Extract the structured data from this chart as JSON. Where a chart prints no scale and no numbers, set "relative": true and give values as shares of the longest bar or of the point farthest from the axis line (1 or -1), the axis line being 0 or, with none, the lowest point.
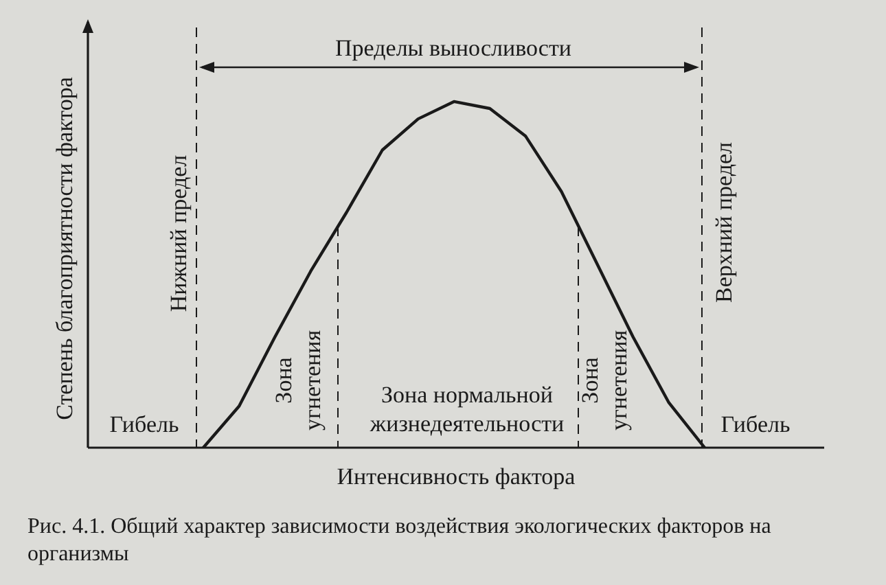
{
  "chart_data": {
    "type": "line",
    "relative": true,
    "xlabel": "Интенсивность фактора",
    "ylabel": "Степень благоприятности фактора",
    "marker": "none",
    "categories": [
      null,
      null,
      null,
      null,
      null,
      null,
      null,
      null,
      null,
      null,
      null,
      null,
      null,
      null,
      null
    ],
    "values": [
      0,
      0.12,
      0.32,
      0.51,
      0.68,
      0.86,
      0.95,
      1,
      0.98,
      0.9,
      0.74,
      0.53,
      0.32,
      0.13,
      0
    ],
    "color": "#1a1a1a",
    "annotations": [
      "Пределы выносливости",
      "Нижний предел",
      "Верхний предел",
      "Гибель",
      "Зона угнетения",
      "Зона нормальной жизнедеятельности",
      "Зона угнетения",
      "Гибель",
      "Рис. 4.1. Общий характер зависимости воздействия экологических факторов на организмы"
    ]
  }
}
